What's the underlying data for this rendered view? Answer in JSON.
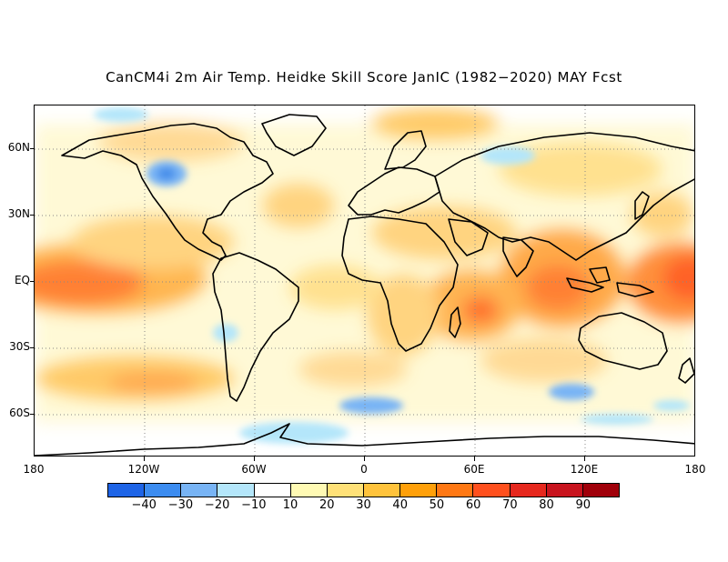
{
  "title": "CanCM4i 2m Air Temp. Heidke Skill Score JanIC (1982−2020) MAY Fcst",
  "axes": {
    "y_labels": [
      "60N",
      "30N",
      "EQ",
      "30S",
      "60S"
    ],
    "x_labels": [
      "180",
      "120W",
      "60W",
      "0",
      "60E",
      "120E",
      "180"
    ]
  },
  "colorbar": {
    "labels": [
      "−40",
      "−30",
      "−20",
      "−10",
      "10",
      "20",
      "30",
      "40",
      "50",
      "60",
      "70",
      "80",
      "90"
    ],
    "colors": [
      "#1e64e6",
      "#3c8cf0",
      "#78b4f5",
      "#b4e6fa",
      "#ffffff",
      "#fffab4",
      "#ffe178",
      "#ffc33c",
      "#ffa00a",
      "#ff7814",
      "#ff501e",
      "#e6281e",
      "#c8141e",
      "#a0000a"
    ]
  }
}
